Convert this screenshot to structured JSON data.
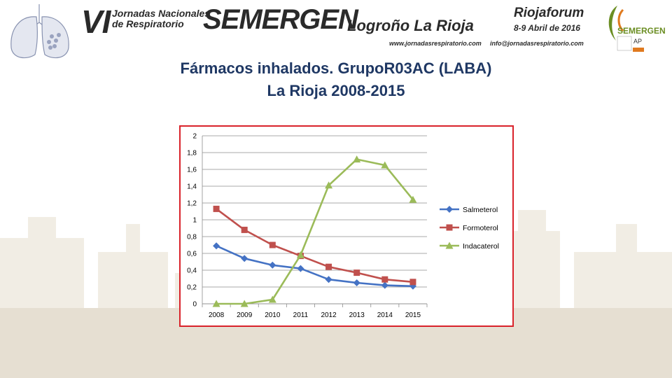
{
  "header": {
    "edition": "VI",
    "event_line1": "Jornadas Nacionales",
    "event_line2": "de Respiratorio",
    "organization": "SEMERGEN",
    "city": "Logroño  La Rioja",
    "website": "www.jornadasrespiratorio.com",
    "venue": "Riojaforum",
    "dates": "8-9 Abril de 2016",
    "email": "info@jornadasrespiratorio.com",
    "logo_text": "SEMERGEN",
    "logo_sub": "AP"
  },
  "title": {
    "line1": "Fármacos inhalados. GrupoR03AC (LABA)",
    "line2": "La Rioja 2008-2015"
  },
  "colors": {
    "title": "#1f3864",
    "frame": "#d9222a",
    "salmeterol": "#4472c4",
    "formoterol": "#c0504d",
    "indacaterol": "#9bbb59"
  },
  "chart_data": {
    "type": "line",
    "x": [
      "2008",
      "2009",
      "2010",
      "2011",
      "2012",
      "2013",
      "2014",
      "2015"
    ],
    "ylim": [
      0,
      2
    ],
    "yticks": [
      "0",
      "0,2",
      "0,4",
      "0,6",
      "0,8",
      "1",
      "1,2",
      "1,4",
      "1,6",
      "1,8",
      "2"
    ],
    "grid": true,
    "legend": "right",
    "series": [
      {
        "name": "Salmeterol",
        "marker": "diamond",
        "color": "#4472c4",
        "values": [
          0.69,
          0.54,
          0.46,
          0.42,
          0.29,
          0.25,
          0.22,
          0.21
        ]
      },
      {
        "name": "Formoterol",
        "marker": "square",
        "color": "#c0504d",
        "values": [
          1.13,
          0.88,
          0.7,
          0.57,
          0.44,
          0.37,
          0.29,
          0.26
        ]
      },
      {
        "name": "Indacaterol",
        "marker": "triangle",
        "color": "#9bbb59",
        "values": [
          0.0,
          0.0,
          0.05,
          0.58,
          1.41,
          1.72,
          1.65,
          1.24
        ]
      }
    ]
  }
}
